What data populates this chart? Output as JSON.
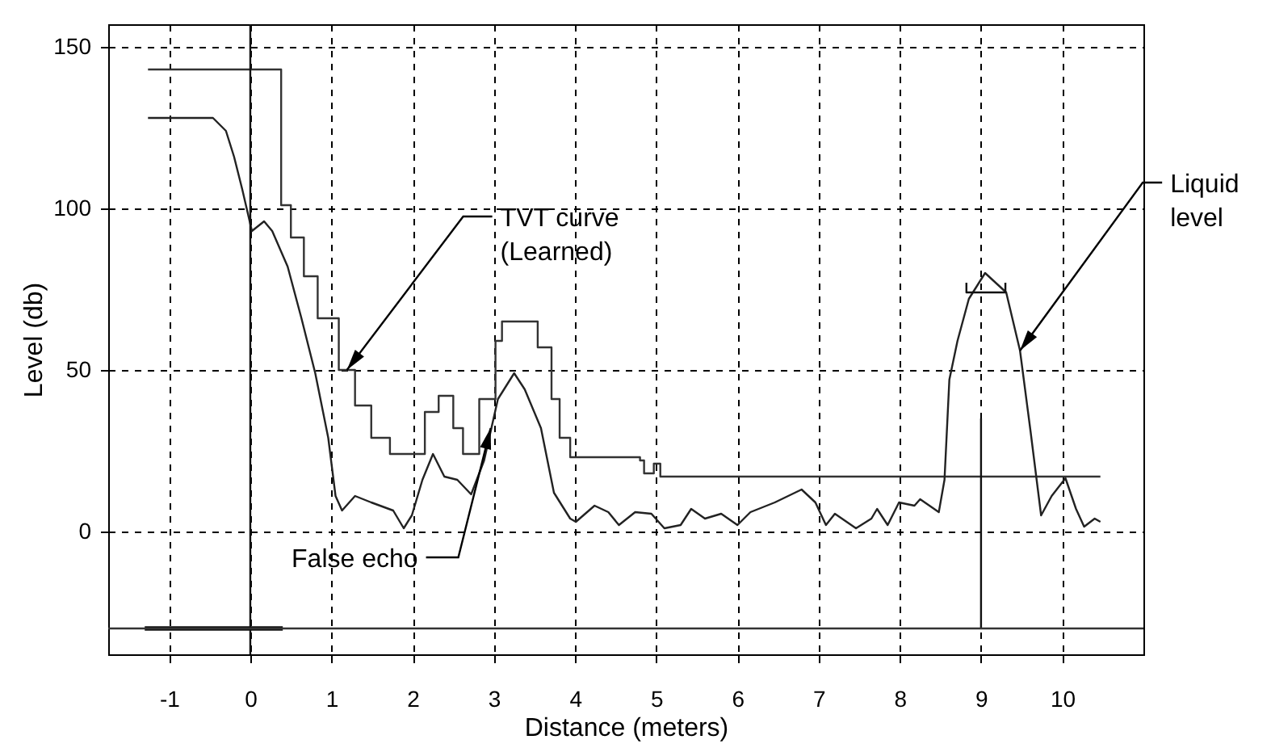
{
  "chart_data": {
    "type": "line",
    "xlabel": "Distance (meters)",
    "ylabel": "Level (db)",
    "xlim": [
      -1.75,
      11
    ],
    "xticks": [
      -1,
      0,
      1,
      2,
      3,
      4,
      5,
      6,
      7,
      8,
      9,
      10
    ],
    "ylim": [
      -38,
      157
    ],
    "yticks": [
      0,
      50,
      100,
      150
    ],
    "grid": true,
    "series": [
      {
        "type": "step",
        "color": "#333333",
        "x": [
          -1.26,
          0.38,
          0.38,
          0.5,
          0.66,
          0.83,
          1.09,
          1.29,
          1.49,
          1.72,
          2.09,
          2.15,
          2.32,
          2.5,
          2.62,
          2.82,
          3.02,
          3.1,
          3.45,
          3.54,
          3.71,
          3.81,
          3.94,
          4.8,
          4.85,
          4.97,
          5.05,
          10.47
        ],
        "values": [
          143,
          143,
          101,
          91,
          79,
          66,
          50,
          39,
          29,
          24,
          24,
          37,
          42,
          32,
          24,
          41,
          59,
          65,
          65,
          57,
          41,
          29,
          23,
          22,
          18,
          21,
          17,
          17
        ]
      },
      {
        "type": "line",
        "color": "#222222",
        "x": [
          -1.26,
          -0.46,
          -0.3,
          -0.2,
          -0.1,
          0.02,
          0.17,
          0.27,
          0.46,
          0.63,
          0.8,
          0.96,
          1.05,
          1.13,
          1.29,
          1.49,
          1.76,
          1.89,
          1.99,
          2.12,
          2.25,
          2.39,
          2.55,
          2.72,
          2.88,
          3.05,
          3.25,
          3.38,
          3.58,
          3.74,
          3.94,
          4.01,
          4.24,
          4.41,
          4.54,
          4.74,
          4.94,
          5.1,
          5.3,
          5.43,
          5.6,
          5.8,
          6.0,
          6.16,
          6.46,
          6.79,
          6.96,
          7.09,
          7.2,
          7.46,
          7.65,
          7.72,
          7.85,
          7.99,
          8.18,
          8.25,
          8.48,
          8.55,
          8.61,
          8.71,
          8.85,
          9.05,
          9.31,
          9.48,
          9.61,
          9.74,
          9.87,
          10.04,
          10.17,
          10.27,
          10.4,
          10.47
        ],
        "values": [
          128,
          128,
          124,
          116,
          106,
          93,
          96,
          93,
          82,
          66,
          49,
          29,
          11,
          6.5,
          11,
          9,
          6.5,
          1,
          5,
          16,
          24,
          17,
          16,
          11.5,
          22,
          41,
          49,
          44,
          32,
          12,
          4,
          3,
          8,
          6,
          2,
          6,
          5.5,
          1,
          2,
          7,
          4,
          5.5,
          2,
          6,
          9,
          13,
          9,
          2,
          5.5,
          1,
          4,
          7,
          2,
          9,
          8,
          10,
          6,
          16,
          47,
          59,
          72,
          80,
          74,
          56,
          31,
          5,
          11,
          16.5,
          7,
          1.5,
          4,
          3
        ]
      },
      {
        "type": "line",
        "color": "#111111",
        "x": [
          9,
          9
        ],
        "values": [
          -30,
          35
        ]
      },
      {
        "type": "line",
        "color": "#111111",
        "x": [
          -1.3,
          0.4
        ],
        "values": [
          -30,
          -30
        ]
      },
      {
        "type": "line",
        "color": "#111111",
        "x": [
          8.82,
          8.82,
          9.3,
          9.3
        ],
        "values": [
          77,
          74,
          74,
          77
        ]
      }
    ],
    "ref_lines": [
      {
        "axis": "x",
        "value": 0,
        "color": "#111111"
      },
      {
        "axis": "y",
        "value": -30,
        "color": "#333333"
      }
    ],
    "annotations": [
      {
        "text": "TVT curve\n(Learned)",
        "x": 1.19,
        "y": 50
      },
      {
        "text": "False echo",
        "x": 2.96,
        "y": 32
      },
      {
        "text": "Liquid\nlevel",
        "x": 9.48,
        "y": 56
      }
    ]
  }
}
